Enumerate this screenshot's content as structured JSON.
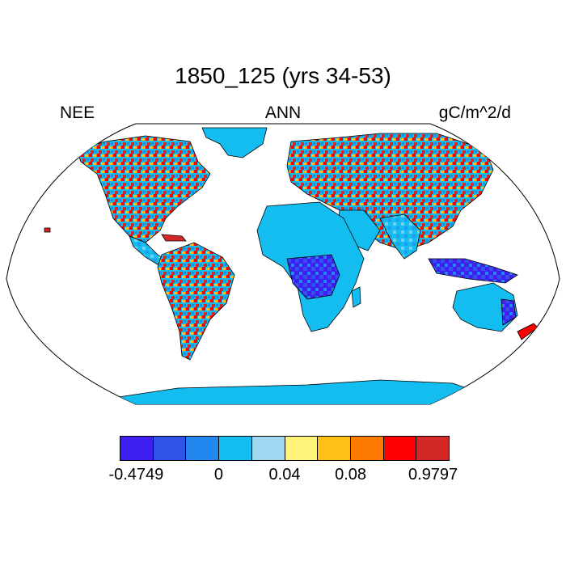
{
  "title": "1850_125 (yrs 34-53)",
  "left_label": "NEE",
  "center_label": "ANN",
  "right_label": "gC/m^2/d",
  "colors": {
    "ocean": "#ffffff",
    "outline": "#000000"
  },
  "colorbar": {
    "colors": [
      "#3d1ff2",
      "#2f55e6",
      "#2288f0",
      "#14bdf0",
      "#a0d6f0",
      "#fff37a",
      "#ffbf14",
      "#ff7a00",
      "#ff0000",
      "#d42828"
    ],
    "labels": [
      {
        "text": "-0.4749",
        "boundary": 0.5
      },
      {
        "text": "0",
        "boundary": 3
      },
      {
        "text": "0.04",
        "boundary": 5
      },
      {
        "text": "0.08",
        "boundary": 7
      },
      {
        "text": "0.9797",
        "boundary": 9.5
      }
    ]
  },
  "map": {
    "projection": "Robinson",
    "variable": "NEE",
    "season": "ANN",
    "units": "gC/m^2/d"
  }
}
